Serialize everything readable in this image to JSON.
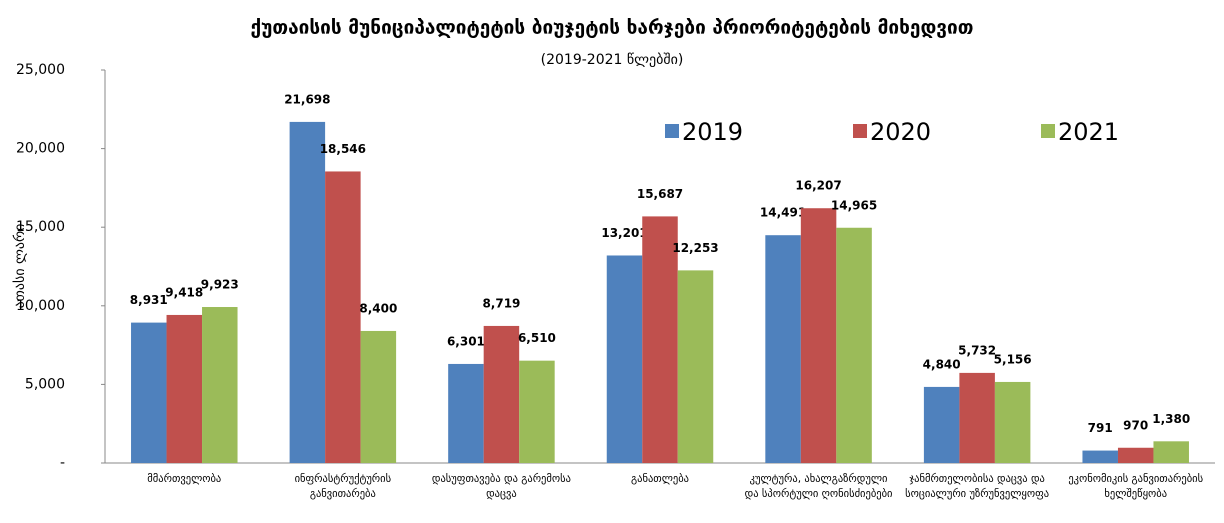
{
  "chart_data": {
    "type": "bar",
    "title": "ქუთაისის მუნიციპალიტეტის  ბიუჯეტის ხარჯები  პრიორიტეტების მიხედვით",
    "subtitle": "(2019-2021 წლებში)",
    "y_label": "ათასი ლარი",
    "categories": [
      "მმართველობა",
      "ინფრასტრუქტურის განვითარება",
      "დასუფთავება და გარემოსა დაცვა",
      "განათლება",
      "კულტურა, ახალგაზრდული და სპორტული ღონისძიებები",
      "ჯანმრთელობისა დაცვა და სოციალური უზრუნველყოფა",
      "ეკონომიკის განვითარების ხელშეწყობა"
    ],
    "series": [
      {
        "name": "2019",
        "color": "#4f81bd",
        "values": [
          8931,
          21698,
          6301,
          13201,
          14491,
          4840,
          791
        ],
        "value_labels": [
          "8,931",
          "21,698",
          "6,301",
          "13,201",
          "14,491",
          "4,840",
          "791"
        ]
      },
      {
        "name": "2020",
        "color": "#c0504d",
        "values": [
          9418,
          18546,
          8719,
          15687,
          16207,
          5732,
          970
        ],
        "value_labels": [
          "9,418",
          "18,546",
          "8,719",
          "15,687",
          "16,207",
          "5,732",
          "970"
        ]
      },
      {
        "name": "2021",
        "color": "#9bbb59",
        "values": [
          9923,
          8400,
          6510,
          12253,
          14965,
          5156,
          1380
        ],
        "value_labels": [
          "9,923",
          "8,400",
          "6,510",
          "12,253",
          "14,965",
          "5,156",
          "1,380"
        ]
      }
    ],
    "ylim": [
      0,
      25000
    ],
    "yticks": [
      {
        "value": 0,
        "label": "-"
      },
      {
        "value": 5000,
        "label": "5,000"
      },
      {
        "value": 10000,
        "label": "10,000"
      },
      {
        "value": 15000,
        "label": "15,000"
      },
      {
        "value": 20000,
        "label": "20,000"
      },
      {
        "value": 25000,
        "label": "25,000"
      }
    ],
    "legend": "top-right"
  }
}
